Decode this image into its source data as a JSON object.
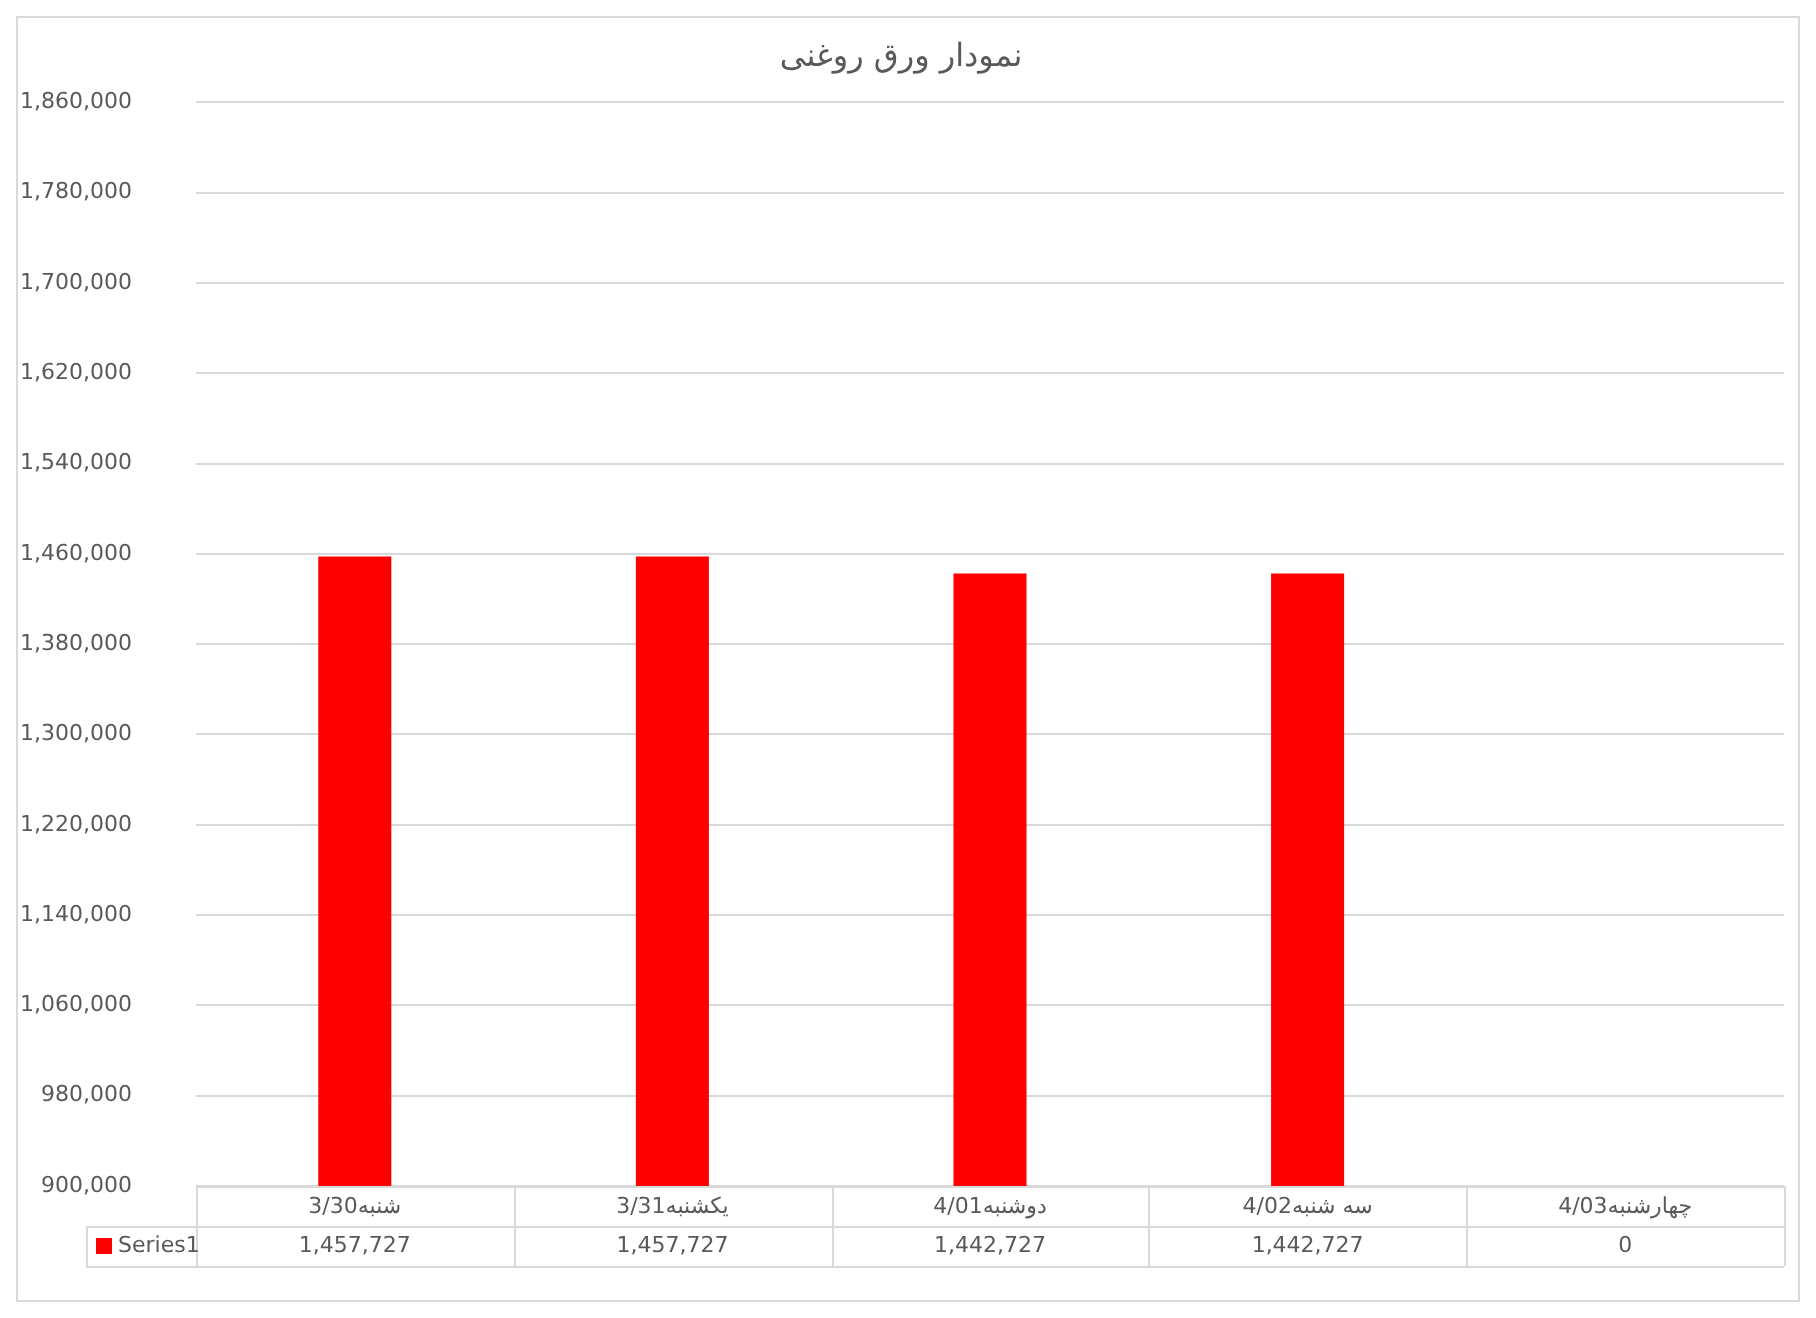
{
  "chart_data": {
    "type": "bar",
    "title": "نمودار ورق روغنی",
    "categories": [
      "شنبه3/30",
      "یکشنبه3/31",
      "دوشنبه4/01",
      "سه شنبه4/02",
      "چهارشنبه4/03"
    ],
    "series": [
      {
        "name": "Series1",
        "color": "#ff0000",
        "values": [
          1457727,
          1457727,
          1442727,
          1442727,
          null
        ],
        "value_labels": [
          "1,457,727",
          "1,457,727",
          "1,442,727",
          "1,442,727",
          "0"
        ]
      }
    ],
    "ylim": [
      900000,
      1860000
    ],
    "yticks": [
      {
        "value": 900000,
        "label": "900,000"
      },
      {
        "value": 980000,
        "label": "980,000"
      },
      {
        "value": 1060000,
        "label": "1,060,000"
      },
      {
        "value": 1140000,
        "label": "1,140,000"
      },
      {
        "value": 1220000,
        "label": "1,220,000"
      },
      {
        "value": 1300000,
        "label": "1,300,000"
      },
      {
        "value": 1380000,
        "label": "1,380,000"
      },
      {
        "value": 1460000,
        "label": "1,460,000"
      },
      {
        "value": 1540000,
        "label": "1,540,000"
      },
      {
        "value": 1620000,
        "label": "1,620,000"
      },
      {
        "value": 1700000,
        "label": "1,700,000"
      },
      {
        "value": 1780000,
        "label": "1,780,000"
      },
      {
        "value": 1860000,
        "label": "1,860,000"
      }
    ],
    "grid": "y",
    "legend": "bottom"
  }
}
